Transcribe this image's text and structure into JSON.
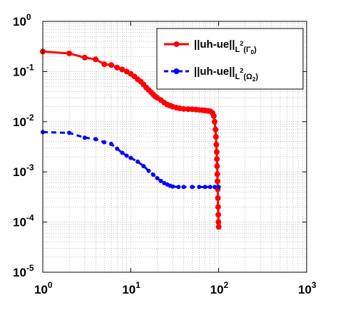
{
  "chart_data": {
    "type": "line",
    "x_scale": "log",
    "y_scale": "log",
    "xlim": [
      1,
      1000
    ],
    "ylim": [
      1e-05,
      1
    ],
    "grid": true,
    "legend_position": "top-right",
    "x_tick_labels": [
      {
        "base": "10",
        "exp": "0",
        "value": 1
      },
      {
        "base": "10",
        "exp": "1",
        "value": 10
      },
      {
        "base": "10",
        "exp": "2",
        "value": 100
      },
      {
        "base": "10",
        "exp": "3",
        "value": 1000
      }
    ],
    "y_tick_labels": [
      {
        "base": "10",
        "exp": "0",
        "value": 1
      },
      {
        "base": "10",
        "exp": "-1",
        "value": 0.1
      },
      {
        "base": "10",
        "exp": "-2",
        "value": 0.01
      },
      {
        "base": "10",
        "exp": "-3",
        "value": 0.001
      },
      {
        "base": "10",
        "exp": "-4",
        "value": 0.0001
      },
      {
        "base": "10",
        "exp": "-5",
        "value": 1e-05
      }
    ],
    "series": [
      {
        "name": "||uh-ue||",
        "legend_main": "||uh-ue||",
        "legend_norm": "L",
        "legend_norm_exp": "2",
        "legend_domain": "(Γ",
        "legend_domain_sub": "0",
        "legend_close": ")",
        "color": "#ff0000",
        "line_style": "solid",
        "points": [
          [
            1,
            0.25
          ],
          [
            2,
            0.23
          ],
          [
            3,
            0.19
          ],
          [
            4,
            0.175
          ],
          [
            5,
            0.14
          ],
          [
            6,
            0.135
          ],
          [
            7,
            0.12
          ],
          [
            8,
            0.11
          ],
          [
            9,
            0.1
          ],
          [
            10,
            0.09
          ],
          [
            11,
            0.08
          ],
          [
            12,
            0.07
          ],
          [
            13,
            0.063
          ],
          [
            14,
            0.055
          ],
          [
            15,
            0.048
          ],
          [
            16,
            0.043
          ],
          [
            17,
            0.039
          ],
          [
            18,
            0.035
          ],
          [
            19,
            0.032
          ],
          [
            20,
            0.03
          ],
          [
            22,
            0.027
          ],
          [
            24,
            0.024
          ],
          [
            26,
            0.022
          ],
          [
            28,
            0.021
          ],
          [
            30,
            0.02
          ],
          [
            33,
            0.019
          ],
          [
            36,
            0.0185
          ],
          [
            40,
            0.018
          ],
          [
            45,
            0.0178
          ],
          [
            50,
            0.0177
          ],
          [
            55,
            0.0175
          ],
          [
            60,
            0.0172
          ],
          [
            65,
            0.017
          ],
          [
            70,
            0.0168
          ],
          [
            75,
            0.0165
          ],
          [
            80,
            0.0162
          ],
          [
            85,
            0.015
          ],
          [
            88,
            0.013
          ],
          [
            90,
            0.01
          ],
          [
            92,
            0.007
          ],
          [
            93,
            0.005
          ],
          [
            94,
            0.0035
          ],
          [
            95,
            0.0025
          ],
          [
            95.5,
            0.0018
          ],
          [
            96,
            0.0013
          ],
          [
            96.5,
            0.0009
          ],
          [
            97,
            0.00065
          ],
          [
            97.5,
            0.00045
          ],
          [
            98,
            0.0003
          ],
          [
            98.5,
            0.0002
          ],
          [
            99,
            0.00014
          ],
          [
            99.5,
            0.0001
          ],
          [
            100,
            8e-05
          ]
        ]
      },
      {
        "name": "||uh-ue||",
        "legend_main": "||uh-ue||",
        "legend_norm": "L",
        "legend_norm_exp": "2",
        "legend_domain": "(Ω",
        "legend_domain_sub": "2",
        "legend_close": ")",
        "color": "#0000ff",
        "line_style": "dashed",
        "points": [
          [
            1,
            0.0062
          ],
          [
            2,
            0.006
          ],
          [
            3,
            0.0048
          ],
          [
            4,
            0.0045
          ],
          [
            5,
            0.0039
          ],
          [
            6,
            0.0036
          ],
          [
            7,
            0.0029
          ],
          [
            8,
            0.0024
          ],
          [
            9,
            0.0021
          ],
          [
            10,
            0.0019
          ],
          [
            12,
            0.0016
          ],
          [
            14,
            0.0013
          ],
          [
            16,
            0.00105
          ],
          [
            18,
            0.00088
          ],
          [
            20,
            0.00075
          ],
          [
            22,
            0.00066
          ],
          [
            24,
            0.0006
          ],
          [
            26,
            0.00056
          ],
          [
            28,
            0.00053
          ],
          [
            30,
            0.00051
          ],
          [
            35,
            0.0005
          ],
          [
            40,
            0.0005
          ],
          [
            50,
            0.0005
          ],
          [
            60,
            0.0005
          ],
          [
            70,
            0.0005
          ],
          [
            80,
            0.0005
          ],
          [
            90,
            0.0005
          ],
          [
            100,
            0.0005
          ]
        ]
      }
    ]
  }
}
